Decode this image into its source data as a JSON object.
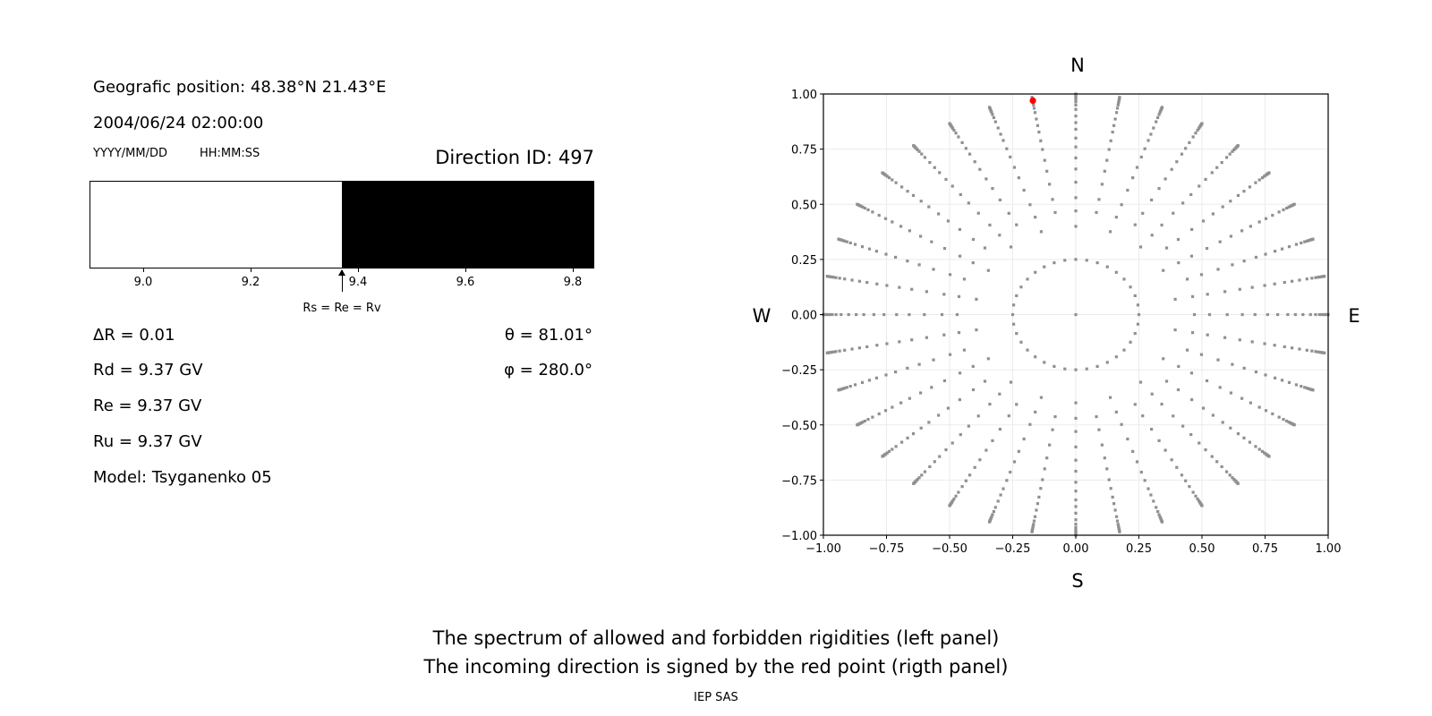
{
  "left_panel": {
    "position_text": "Geografic position: 48.38°N 21.43°E",
    "datetime_text": "2004/06/24 02:00:00",
    "date_format_label": "YYYY/MM/DD",
    "time_format_label": "HH:MM:SS",
    "direction_id_text": "Direction ID: 497",
    "delta_r_text": "ΔR = 0.01",
    "rd_text": "Rd = 9.37 GV",
    "re_text": "Re = 9.37 GV",
    "ru_text": "Ru = 9.37 GV",
    "model_text": "Model: Tsyganenko 05",
    "theta_text": "θ = 81.01°",
    "phi_text": "φ = 280.0°",
    "arrow_label": "Rs = Re = Rv"
  },
  "caption": {
    "line1": "The spectrum of allowed and forbidden rigidities (left panel)",
    "line2": "The incoming direction is signed by the red point (rigth panel)",
    "credit": "IEP SAS"
  },
  "chart_data": [
    {
      "type": "bar",
      "description_of_fill": "allowed (white) below cutoff, forbidden (black) above",
      "xlim": [
        8.9,
        9.84
      ],
      "x_ticks": [
        "9.0",
        "9.2",
        "9.4",
        "9.6",
        "9.8"
      ],
      "x_tick_values": [
        9.0,
        9.2,
        9.4,
        9.6,
        9.8
      ],
      "cutoff_rigidity": 9.37,
      "colors": {
        "allowed": "#ffffff",
        "forbidden": "#000000"
      }
    },
    {
      "type": "scatter",
      "xlim": [
        -1,
        1
      ],
      "ylim": [
        -1,
        1
      ],
      "x_ticks": [
        "−1.00",
        "−0.75",
        "−0.50",
        "−0.25",
        "0.00",
        "0.25",
        "0.50",
        "0.75",
        "1.00"
      ],
      "y_ticks": [
        "1.00",
        "0.75",
        "0.50",
        "0.25",
        "0.00",
        "−0.25",
        "−0.50",
        "−0.75",
        "−1.00"
      ],
      "tick_values": [
        -1,
        -0.75,
        -0.5,
        -0.25,
        0,
        0.25,
        0.5,
        0.75,
        1
      ],
      "grid": true,
      "compass": {
        "top": "N",
        "bottom": "S",
        "left": "W",
        "right": "E"
      },
      "grey_points": {
        "color": "#909090",
        "azimuth_step_deg": 10,
        "center_point": [
          0,
          0
        ],
        "inner_ring_radius": 0.25,
        "spoke_radii": [
          0.4,
          0.47,
          0.53,
          0.6,
          0.66,
          0.71,
          0.76,
          0.8,
          0.84,
          0.87,
          0.9,
          0.93,
          0.95,
          0.965,
          0.975,
          0.982,
          0.988,
          0.993,
          0.997,
          1.0
        ]
      },
      "red_point": {
        "x": -0.17,
        "y": 0.97,
        "color": "#ff0000"
      }
    }
  ]
}
